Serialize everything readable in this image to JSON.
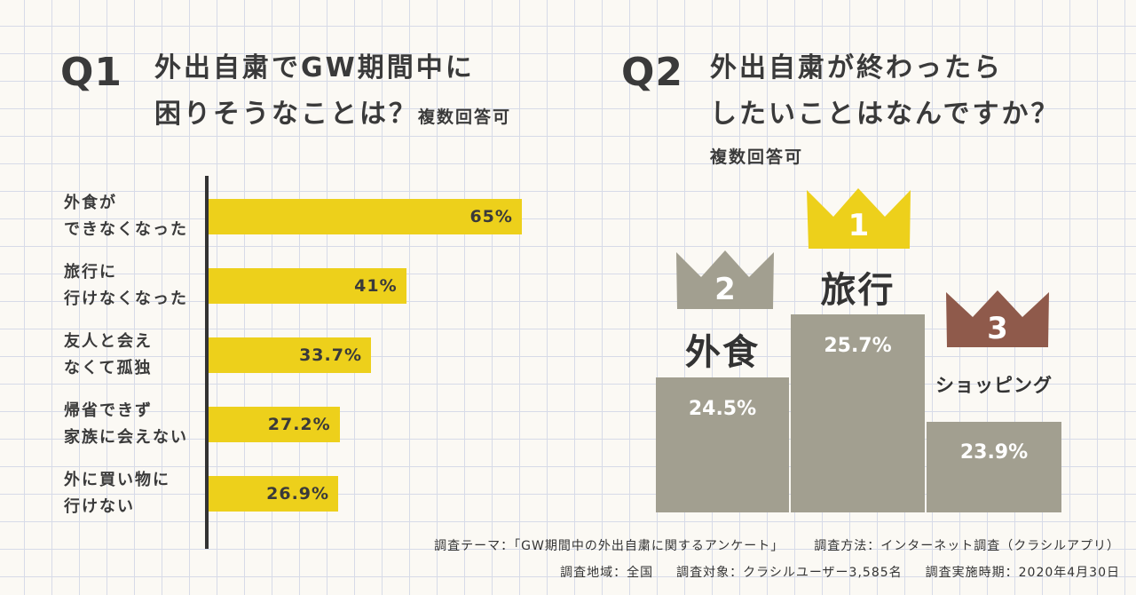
{
  "q1": {
    "number": "Q1",
    "title_line1": "外出自粛でGW期間中に",
    "title_line2": "困りそうなことは？",
    "note": "複数回答可"
  },
  "q2": {
    "number": "Q2",
    "title_line1": "外出自粛が終わったら",
    "title_line2": "したいことはなんですか？",
    "note": "複数回答可"
  },
  "colors": {
    "bar": "#edd01b",
    "podium": "#a29f90",
    "crown_gold": "#edd01b",
    "crown_gray": "#a29f90",
    "crown_brown": "#8f5a4b"
  },
  "chart_data": [
    {
      "type": "bar",
      "orientation": "horizontal",
      "categories": [
        "外食が\nできなくなった",
        "旅行に\n行けなくなった",
        "友人と会え\nなくて孤独",
        "帰省できず\n家族に会えない",
        "外に買い物に\n行けない"
      ],
      "values": [
        65,
        41,
        33.7,
        27.2,
        26.9
      ],
      "value_labels": [
        "65%",
        "41%",
        "33.7%",
        "27.2%",
        "26.9%"
      ],
      "unit": "%",
      "xlim": [
        0,
        100
      ]
    },
    {
      "type": "bar",
      "style": "podium",
      "ranking": [
        {
          "rank": "1",
          "label": "旅行",
          "value": 25.7,
          "value_label": "25.7%"
        },
        {
          "rank": "2",
          "label": "外食",
          "value": 24.5,
          "value_label": "24.5%"
        },
        {
          "rank": "3",
          "label": "ショッピング",
          "value": 23.9,
          "value_label": "23.9%"
        }
      ],
      "unit": "%"
    }
  ],
  "footer": {
    "line1_a": "調査テーマ：「GW期間中の外出自粛に関するアンケート」",
    "line1_b": "調査方法：インターネット調査（クラシルアプリ）",
    "line2_a": "調査地域：全国",
    "line2_b": "調査対象：クラシルユーザー3,585名",
    "line2_c": "調査実施時期：2020年4月30日"
  }
}
